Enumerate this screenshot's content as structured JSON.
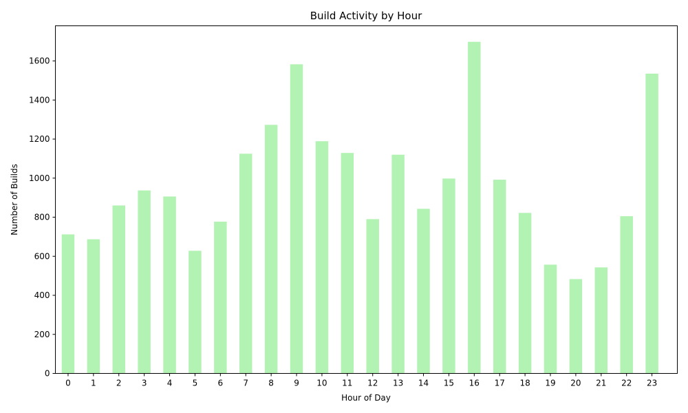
{
  "chart_data": {
    "type": "bar",
    "title": "Build Activity by Hour",
    "xlabel": "Hour of Day",
    "ylabel": "Number of Builds",
    "categories": [
      "0",
      "1",
      "2",
      "3",
      "4",
      "5",
      "6",
      "7",
      "8",
      "9",
      "10",
      "11",
      "12",
      "13",
      "14",
      "15",
      "16",
      "17",
      "18",
      "19",
      "20",
      "21",
      "22",
      "23"
    ],
    "values": [
      712,
      687,
      860,
      937,
      906,
      628,
      777,
      1125,
      1273,
      1583,
      1189,
      1129,
      790,
      1120,
      843,
      998,
      1698,
      992,
      822,
      557,
      483,
      543,
      805,
      1535
    ],
    "ylim": [
      0,
      1780
    ],
    "yticks": [
      0,
      200,
      400,
      600,
      800,
      1000,
      1200,
      1400,
      1600
    ],
    "bar_color": "#b2f2b2",
    "grid": false,
    "legend": "none"
  }
}
